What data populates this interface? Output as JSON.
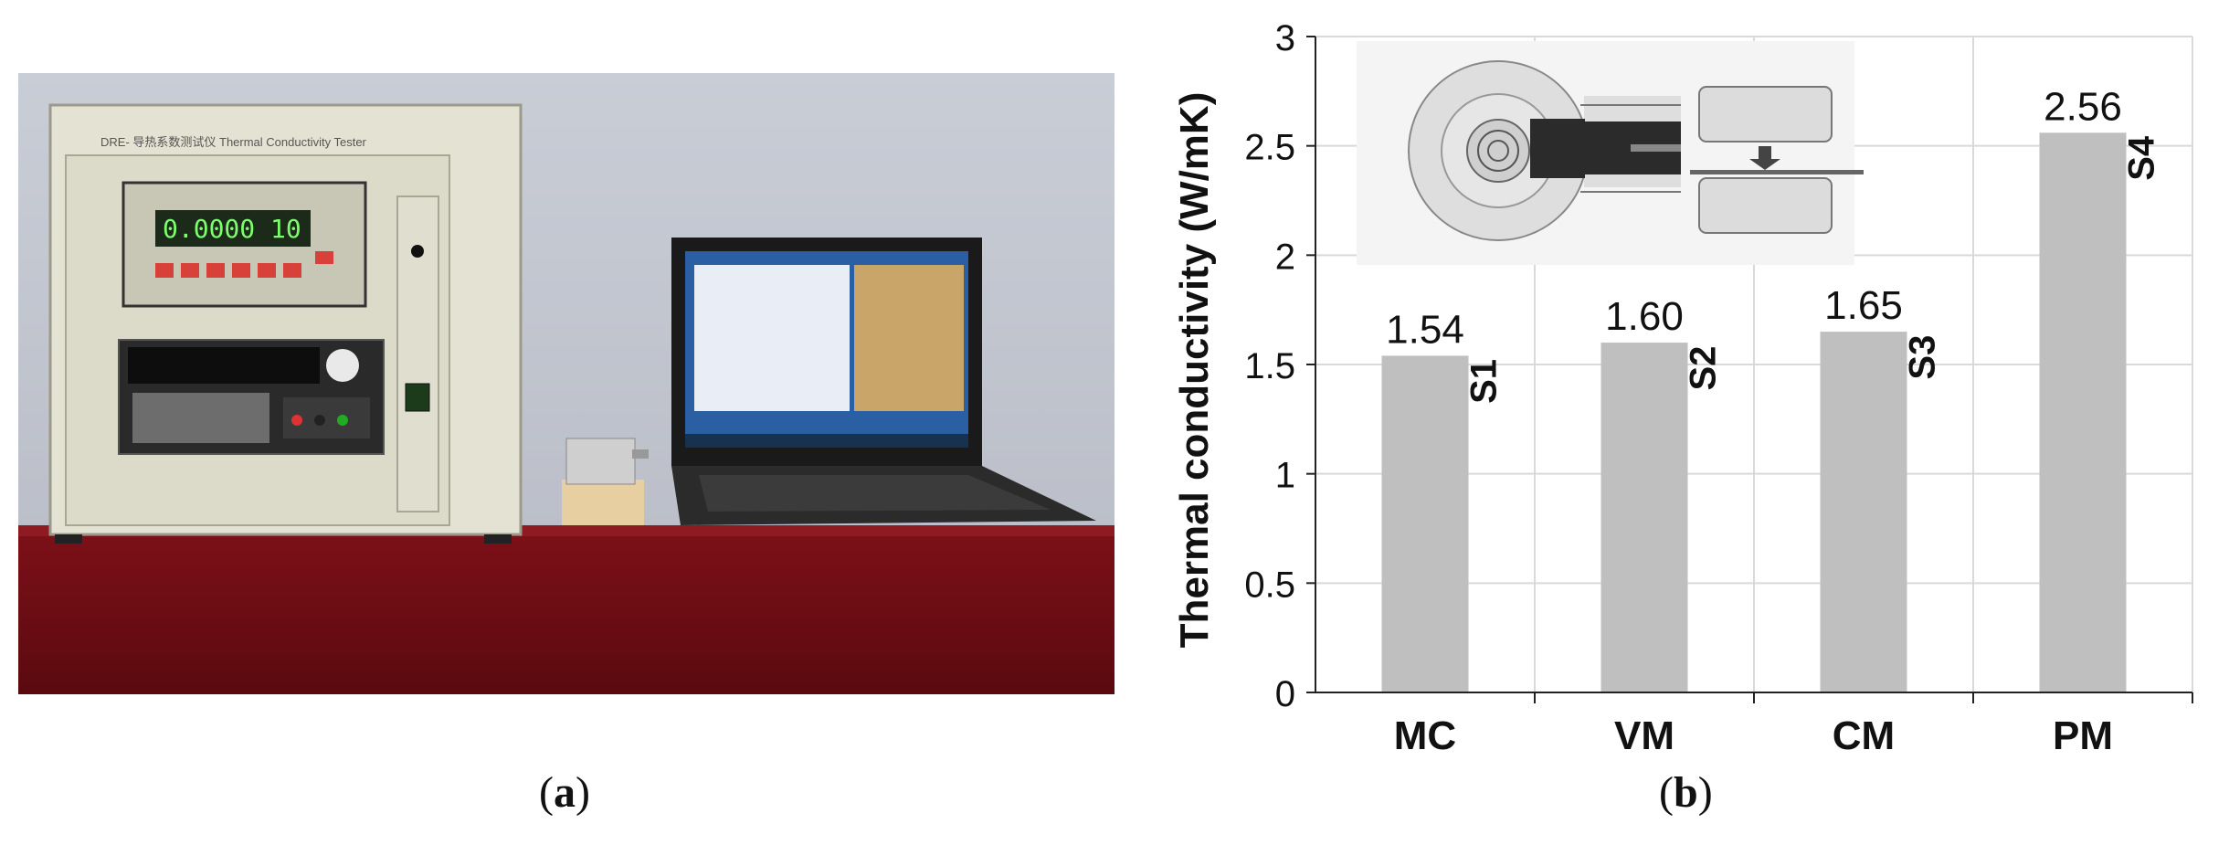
{
  "captions": {
    "a": {
      "open": "(",
      "letter": "a",
      "close": ")"
    },
    "b": {
      "open": "(",
      "letter": "b",
      "close": ")"
    }
  },
  "photo": {
    "device_label": "DRE-  导热系数测试仪  Thermal Conductivity Tester",
    "display_value": "0.0000 10"
  },
  "chart_data": {
    "type": "bar",
    "categories": [
      "MC",
      "VM",
      "CM",
      "PM"
    ],
    "values": [
      1.54,
      1.6,
      1.65,
      2.56
    ],
    "value_labels": [
      "1.54",
      "1.60",
      "1.65",
      "2.56"
    ],
    "sample_labels": [
      "S1",
      "S2",
      "S3",
      "S4"
    ],
    "ylabel": "Thermal conductivity (W/mK)",
    "xlabel": "",
    "ylim": [
      0,
      3
    ],
    "yticks": [
      0,
      0.5,
      1,
      1.5,
      2,
      2.5,
      3
    ],
    "ytick_labels": [
      "0",
      "0.5",
      "1",
      "1.5",
      "2",
      "2.5",
      "3"
    ],
    "grid": true,
    "bar_color": "#bfbfbf",
    "grid_color": "#d9d9d9"
  }
}
